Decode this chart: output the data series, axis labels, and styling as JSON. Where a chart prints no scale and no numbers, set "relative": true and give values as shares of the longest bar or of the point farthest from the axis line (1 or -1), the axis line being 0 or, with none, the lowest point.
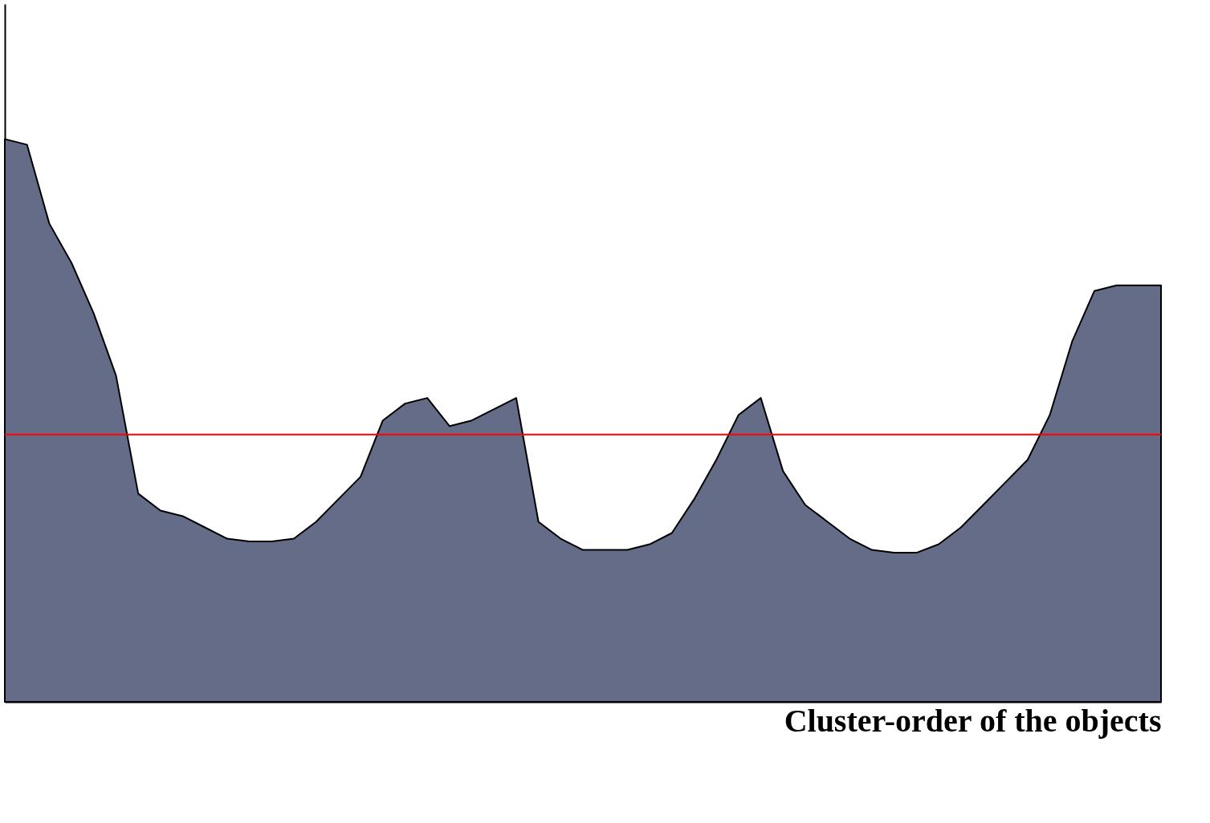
{
  "chart_data": {
    "type": "area",
    "relative": true,
    "xlabel": "Cluster-order of the objects",
    "categories": [
      null,
      null,
      null,
      null,
      null,
      null,
      null,
      null,
      null,
      null,
      null,
      null,
      null,
      null,
      null,
      null,
      null,
      null,
      null,
      null,
      null,
      null,
      null,
      null,
      null,
      null,
      null,
      null,
      null,
      null,
      null,
      null,
      null,
      null,
      null,
      null,
      null,
      null,
      null,
      null,
      null,
      null,
      null,
      null,
      null,
      null,
      null,
      null,
      null,
      null,
      null,
      null,
      null
    ],
    "series": [
      {
        "color": "#646c88",
        "values": [
          1.0,
          0.99,
          0.85,
          0.78,
          0.69,
          0.58,
          0.37,
          0.34,
          0.33,
          0.31,
          0.29,
          0.285,
          0.285,
          0.29,
          0.32,
          0.36,
          0.4,
          0.5,
          0.53,
          0.54,
          0.49,
          0.5,
          0.52,
          0.54,
          0.32,
          0.29,
          0.27,
          0.27,
          0.27,
          0.28,
          0.3,
          0.36,
          0.43,
          0.51,
          0.54,
          0.41,
          0.35,
          0.32,
          0.29,
          0.27,
          0.265,
          0.265,
          0.28,
          0.31,
          0.35,
          0.39,
          0.43,
          0.51,
          0.64,
          0.73,
          0.74,
          0.74,
          0.74
        ]
      }
    ],
    "ref_lines": [
      {
        "axis": "y",
        "value": 0.475,
        "color": "#ff0000"
      }
    ],
    "grid": false
  }
}
